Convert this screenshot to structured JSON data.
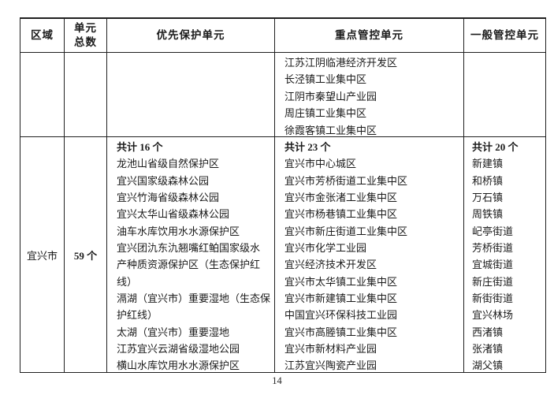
{
  "document": {
    "page_number": "14",
    "table": {
      "headers": {
        "region": "区域",
        "unit_total_line1": "单元",
        "unit_total_line2": "总数",
        "priority": "优先保护单元",
        "key": "重点管控单元",
        "general": "一般管控单元"
      },
      "rows": [
        {
          "region": "",
          "unit_total": "",
          "priority_count": "",
          "priority_units": [],
          "key_count": "",
          "key_units": [
            "江苏江阴临港经济开发区",
            "长泾镇工业集中区",
            "江阴市秦望山产业园",
            "周庄镇工业集中区",
            "徐霞客镇工业集中区"
          ],
          "general_count": "",
          "general_units": []
        },
        {
          "region": "宜兴市",
          "unit_total": "59 个",
          "priority_count": "共计 16 个",
          "priority_units": [
            "龙池山省级自然保护区",
            "宜兴国家级森林公园",
            "宜兴竹海省级森林公园",
            "宜兴太华山省级森林公园",
            "油车水库饮用水水源保护区",
            "宜兴团氿东氿翘嘴红鲌国家级水",
            "产种质资源保护区（生态保护红",
            "线）",
            "滆湖（宜兴市）重要湿地（生态保",
            "护红线）",
            "太湖（宜兴市）重要湿地",
            "江苏宜兴云湖省级湿地公园",
            "横山水库饮用水水源保护区"
          ],
          "key_count": "共计 23 个",
          "key_units": [
            "宜兴市中心城区",
            "宜兴市芳桥街道工业集中区",
            "宜兴市金张渚工业集中区",
            "宜兴市杨巷镇工业集中区",
            "宜兴市新庄街道工业集中区",
            "宜兴市化学工业园",
            "宜兴经济技术开发区",
            "宜兴市太华镇工业集中区",
            "宜兴市新建镇工业集中区",
            "中国宜兴环保科技工业园",
            "宜兴市高塍镇工业集中区",
            "宜兴市新材料产业园",
            "江苏宜兴陶瓷产业园"
          ],
          "general_count": "共计 20 个",
          "general_units": [
            "新建镇",
            "和桥镇",
            "万石镇",
            "周铁镇",
            "屺亭街道",
            "芳桥街道",
            "宜城街道",
            "新庄街道",
            "新街街道",
            "宜兴林场",
            "西渚镇",
            "张渚镇",
            "湖父镇"
          ]
        }
      ]
    }
  }
}
